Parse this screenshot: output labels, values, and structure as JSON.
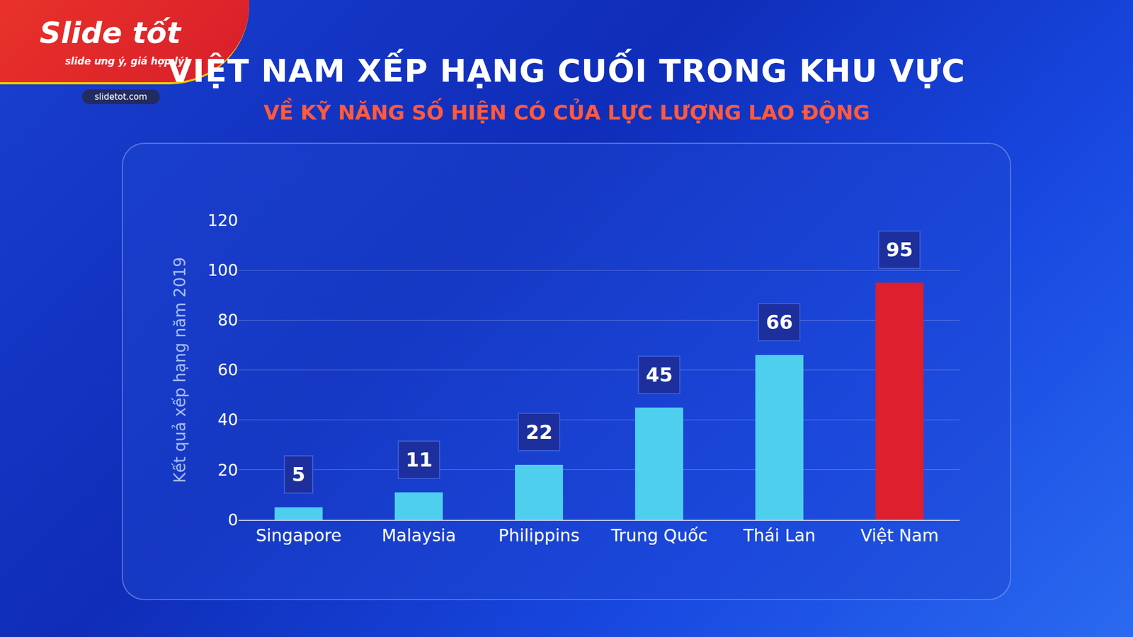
{
  "brand": {
    "name": "Slide tốt",
    "tagline": "slide ưng ý, giá hợp lý!",
    "url": "slidetot.com"
  },
  "chart_data": {
    "type": "bar",
    "title": "VIỆT NAM XẾP HẠNG CUỐI TRONG KHU VỰC",
    "subtitle": "VỀ KỸ NĂNG SỐ HIỆN CÓ CỦA LỰC LƯỢNG LAO ĐỘNG",
    "y_label": "Kết quả xếp hạng năm 2019",
    "categories": [
      "Singapore",
      "Malaysia",
      "Philippins",
      "Trung Quốc",
      "Thái Lan",
      "Việt Nam"
    ],
    "values": [
      5,
      11,
      22,
      45,
      66,
      95
    ],
    "colors": [
      "#4fcfee",
      "#4fcfee",
      "#4fcfee",
      "#4fcfee",
      "#4fcfee",
      "#dd1f2e"
    ],
    "ylim": [
      0,
      120
    ],
    "yticks": [
      0,
      20,
      40,
      60,
      80,
      100,
      120
    ],
    "grid": true,
    "data_labels": true
  }
}
